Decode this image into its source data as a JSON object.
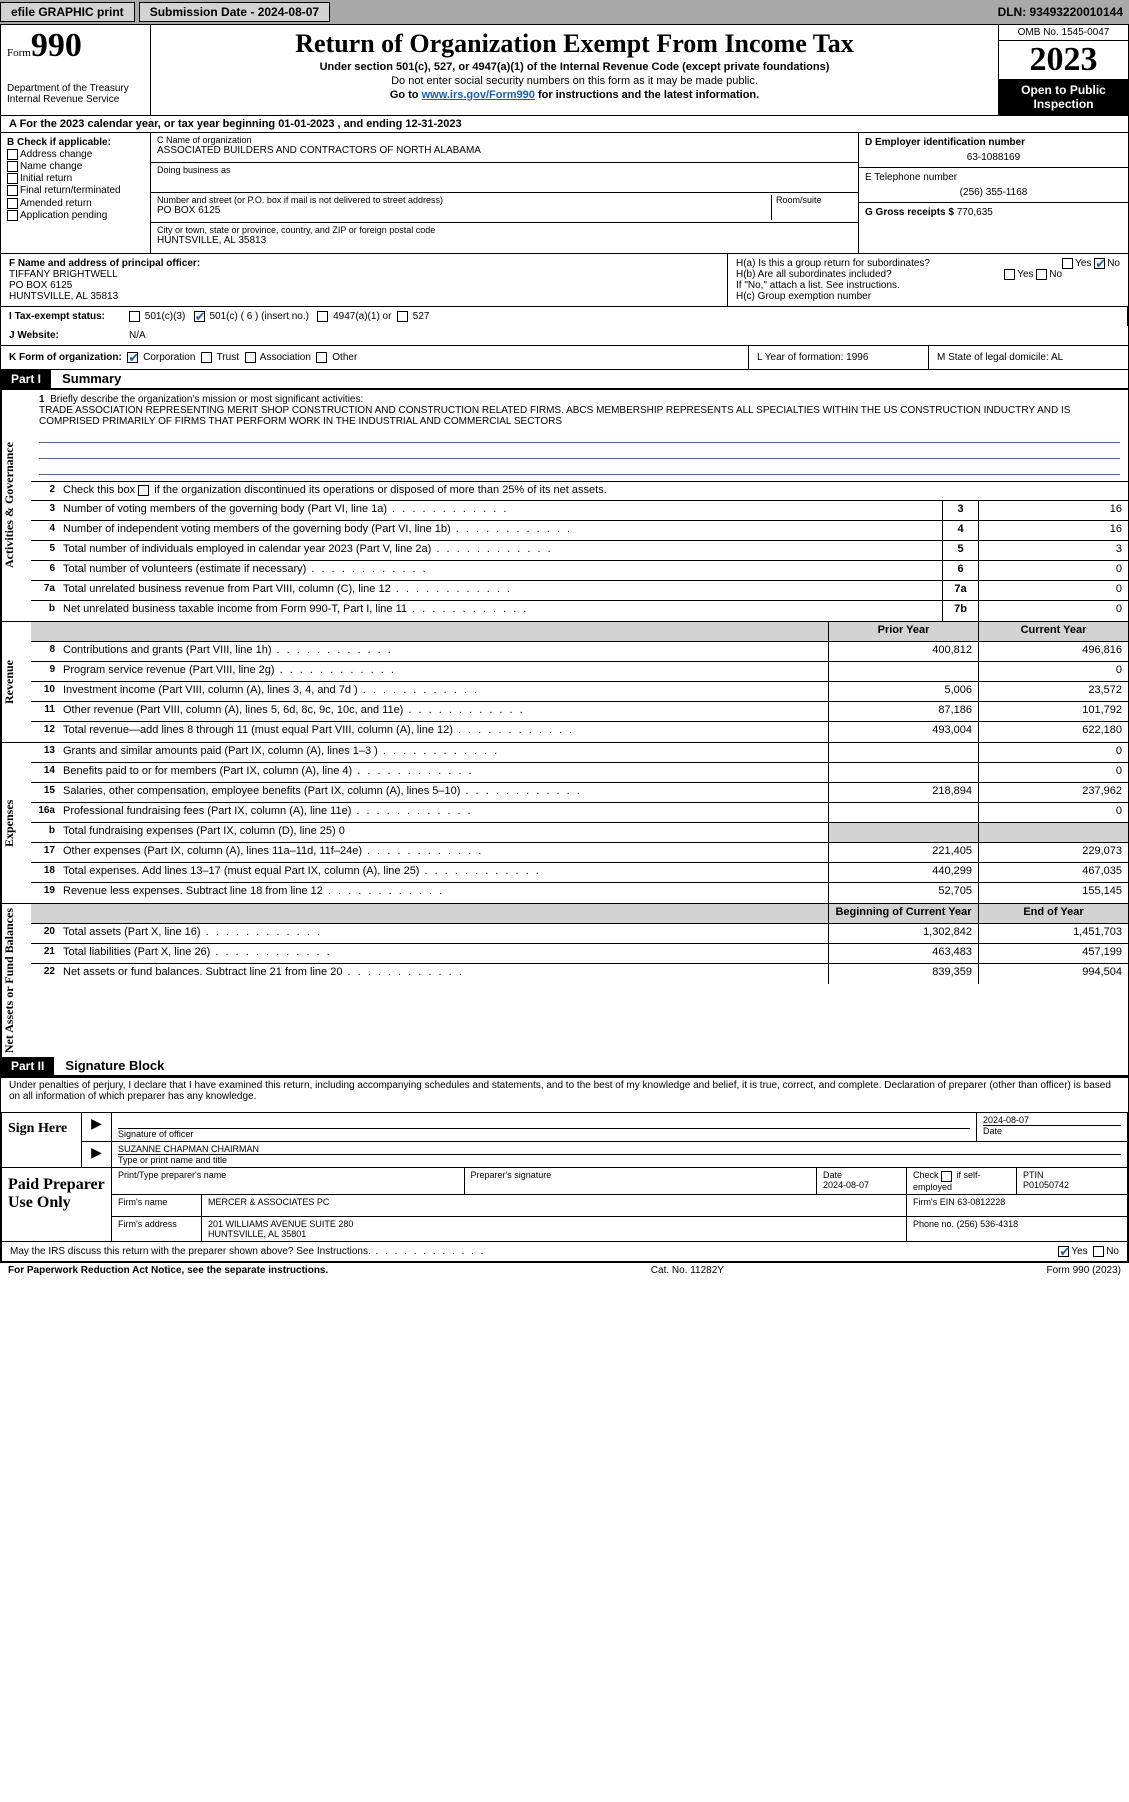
{
  "topbar": {
    "efile": "efile GRAPHIC print",
    "submission_label": "Submission Date - 2024-08-07",
    "dln": "DLN: 93493220010144"
  },
  "header": {
    "form_label": "Form",
    "form_num": "990",
    "dept": "Department of the Treasury",
    "irs": "Internal Revenue Service",
    "title": "Return of Organization Exempt From Income Tax",
    "sub1": "Under section 501(c), 527, or 4947(a)(1) of the Internal Revenue Code (except private foundations)",
    "sub2": "Do not enter social security numbers on this form as it may be made public.",
    "sub3_pre": "Go to ",
    "sub3_link": "www.irs.gov/Form990",
    "sub3_post": " for instructions and the latest information.",
    "omb": "OMB No. 1545-0047",
    "year": "2023",
    "open1": "Open to Public",
    "open2": "Inspection"
  },
  "lineA": "A  For the 2023 calendar year, or tax year beginning 01-01-2023   , and ending 12-31-2023",
  "blockB": {
    "hdr": "B Check if applicable:",
    "opts": [
      "Address change",
      "Name change",
      "Initial return",
      "Final return/terminated",
      "Amended return",
      "Application pending"
    ]
  },
  "blockC": {
    "name_label": "C Name of organization",
    "name": "ASSOCIATED BUILDERS AND CONTRACTORS OF NORTH ALABAMA",
    "dba_label": "Doing business as",
    "dba": "",
    "addr_label": "Number and street (or P.O. box if mail is not delivered to street address)",
    "room_label": "Room/suite",
    "addr": "PO BOX 6125",
    "city_label": "City or town, state or province, country, and ZIP or foreign postal code",
    "city": "HUNTSVILLE, AL  35813"
  },
  "blockD": {
    "label": "D Employer identification number",
    "val": "63-1088169"
  },
  "blockE": {
    "label": "E Telephone number",
    "val": "(256) 355-1168"
  },
  "blockG": {
    "label": "G Gross receipts $ ",
    "val": "770,635"
  },
  "blockF": {
    "label": "F Name and address of principal officer:",
    "name": "TIFFANY BRIGHTWELL",
    "addr1": "PO BOX 6125",
    "addr2": "HUNTSVILLE, AL  35813"
  },
  "blockH": {
    "a": "H(a)  Is this a group return for subordinates?",
    "b": "H(b)  Are all subordinates included?",
    "b2": "If \"No,\" attach a list. See instructions.",
    "c": "H(c)  Group exemption number"
  },
  "rowI": {
    "label": "Tax-exempt status:",
    "c3": "501(c)(3)",
    "c": "501(c) ( 6 ) (insert no.)",
    "a1": "4947(a)(1) or",
    "s527": "527"
  },
  "rowJ": {
    "label": "Website:",
    "val": "N/A"
  },
  "rowK": {
    "label": "K Form of organization:",
    "corp": "Corporation",
    "trust": "Trust",
    "assoc": "Association",
    "other": "Other",
    "L": "L Year of formation: 1996",
    "M": "M State of legal domicile: AL"
  },
  "part1": {
    "hdr": "Part I",
    "title": "Summary",
    "q1": "Briefly describe the organization's mission or most significant activities:",
    "mission": "TRADE ASSOCIATION REPRESENTING MERIT SHOP CONSTRUCTION AND CONSTRUCTION RELATED FIRMS. ABCS MEMBERSHIP REPRESENTS ALL SPECIALTIES WITHIN THE US CONSTRUCTION INDUCTRY AND IS COMPRISED PRIMARILY OF FIRMS THAT PERFORM WORK IN THE INDUSTRIAL AND COMMERCIAL SECTORS",
    "q2": "Check this box      if the organization discontinued its operations or disposed of more than 25% of its net assets."
  },
  "side": {
    "gov": "Activities & Governance",
    "rev": "Revenue",
    "exp": "Expenses",
    "net": "Net Assets or Fund Balances"
  },
  "gov_lines": [
    {
      "n": "3",
      "t": "Number of voting members of the governing body (Part VI, line 1a)",
      "b": "3",
      "v": "16"
    },
    {
      "n": "4",
      "t": "Number of independent voting members of the governing body (Part VI, line 1b)",
      "b": "4",
      "v": "16"
    },
    {
      "n": "5",
      "t": "Total number of individuals employed in calendar year 2023 (Part V, line 2a)",
      "b": "5",
      "v": "3"
    },
    {
      "n": "6",
      "t": "Total number of volunteers (estimate if necessary)",
      "b": "6",
      "v": "0"
    },
    {
      "n": "7a",
      "t": "Total unrelated business revenue from Part VIII, column (C), line 12",
      "b": "7a",
      "v": "0"
    },
    {
      "n": "b",
      "t": "Net unrelated business taxable income from Form 990-T, Part I, line 11",
      "b": "7b",
      "v": "0"
    }
  ],
  "cols": {
    "prior": "Prior Year",
    "current": "Current Year",
    "begin": "Beginning of Current Year",
    "end": "End of Year"
  },
  "rev_lines": [
    {
      "n": "8",
      "t": "Contributions and grants (Part VIII, line 1h)",
      "p": "400,812",
      "c": "496,816"
    },
    {
      "n": "9",
      "t": "Program service revenue (Part VIII, line 2g)",
      "p": "",
      "c": "0"
    },
    {
      "n": "10",
      "t": "Investment income (Part VIII, column (A), lines 3, 4, and 7d )",
      "p": "5,006",
      "c": "23,572"
    },
    {
      "n": "11",
      "t": "Other revenue (Part VIII, column (A), lines 5, 6d, 8c, 9c, 10c, and 11e)",
      "p": "87,186",
      "c": "101,792"
    },
    {
      "n": "12",
      "t": "Total revenue—add lines 8 through 11 (must equal Part VIII, column (A), line 12)",
      "p": "493,004",
      "c": "622,180"
    }
  ],
  "exp_lines": [
    {
      "n": "13",
      "t": "Grants and similar amounts paid (Part IX, column (A), lines 1–3 )",
      "p": "",
      "c": "0"
    },
    {
      "n": "14",
      "t": "Benefits paid to or for members (Part IX, column (A), line 4)",
      "p": "",
      "c": "0"
    },
    {
      "n": "15",
      "t": "Salaries, other compensation, employee benefits (Part IX, column (A), lines 5–10)",
      "p": "218,894",
      "c": "237,962"
    },
    {
      "n": "16a",
      "t": "Professional fundraising fees (Part IX, column (A), line 11e)",
      "p": "",
      "c": "0"
    },
    {
      "n": "b",
      "t": "Total fundraising expenses (Part IX, column (D), line 25) 0",
      "p": null,
      "c": null
    },
    {
      "n": "17",
      "t": "Other expenses (Part IX, column (A), lines 11a–11d, 11f–24e)",
      "p": "221,405",
      "c": "229,073"
    },
    {
      "n": "18",
      "t": "Total expenses. Add lines 13–17 (must equal Part IX, column (A), line 25)",
      "p": "440,299",
      "c": "467,035"
    },
    {
      "n": "19",
      "t": "Revenue less expenses. Subtract line 18 from line 12",
      "p": "52,705",
      "c": "155,145"
    }
  ],
  "net_lines": [
    {
      "n": "20",
      "t": "Total assets (Part X, line 16)",
      "p": "1,302,842",
      "c": "1,451,703"
    },
    {
      "n": "21",
      "t": "Total liabilities (Part X, line 26)",
      "p": "463,483",
      "c": "457,199"
    },
    {
      "n": "22",
      "t": "Net assets or fund balances. Subtract line 21 from line 20",
      "p": "839,359",
      "c": "994,504"
    }
  ],
  "part2": {
    "hdr": "Part II",
    "title": "Signature Block",
    "decl": "Under penalties of perjury, I declare that I have examined this return, including accompanying schedules and statements, and to the best of my knowledge and belief, it is true, correct, and complete. Declaration of preparer (other than officer) is based on all information of which preparer has any knowledge."
  },
  "sign": {
    "here": "Sign Here",
    "sig_label": "Signature of officer",
    "date_label": "Date",
    "date": "2024-08-07",
    "name": "SUZANNE CHAPMAN CHAIRMAN",
    "name_label": "Type or print name and title"
  },
  "prep": {
    "title": "Paid Preparer Use Only",
    "pt_name_label": "Print/Type preparer's name",
    "pt_sig_label": "Preparer's signature",
    "pt_date_label": "Date",
    "pt_date": "2024-08-07",
    "self_label": "Check        if self-employed",
    "ptin_label": "PTIN",
    "ptin": "P01050742",
    "firm_name_label": "Firm's name",
    "firm_name": "MERCER & ASSOCIATES PC",
    "firm_ein_label": "Firm's EIN",
    "firm_ein": "63-0812228",
    "firm_addr_label": "Firm's address",
    "firm_addr1": "201 WILLIAMS AVENUE SUITE 280",
    "firm_addr2": "HUNTSVILLE, AL  35801",
    "phone_label": "Phone no.",
    "phone": "(256) 536-4318"
  },
  "discuss": "May the IRS discuss this return with the preparer shown above? See Instructions.",
  "footer": {
    "left": "For Paperwork Reduction Act Notice, see the separate instructions.",
    "mid": "Cat. No. 11282Y",
    "right": "Form 990 (2023)"
  },
  "yes": "Yes",
  "no": "No"
}
